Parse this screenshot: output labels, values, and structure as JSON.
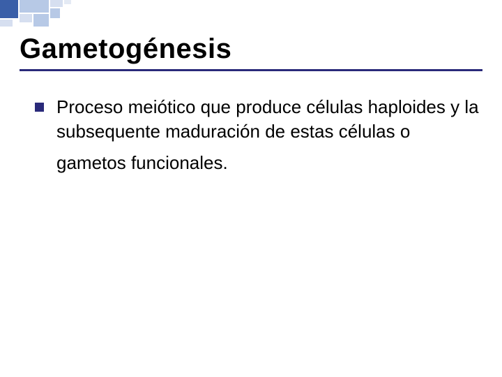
{
  "type": "slide",
  "background_color": "#ffffff",
  "accent_color": "#2a2a7a",
  "decoration_colors": {
    "dark": "#3a5fa8",
    "mid": "#b7c9e6",
    "light": "#d6dff0",
    "faint": "#e4eaf4"
  },
  "title": {
    "text": "Gametogénesis",
    "fontsize": 40,
    "font_weight": "bold",
    "color": "#000000",
    "underline_color": "#2a2a7a",
    "underline_thickness": 3
  },
  "body": {
    "bullet": {
      "shape": "square",
      "size": 13,
      "color": "#2a2a7a"
    },
    "fontsize": 26,
    "color": "#000000",
    "items": [
      {
        "line1": "Proceso meiótico que produce células haploides y la subsequente maduración de estas células o",
        "line2": "gametos funcionales."
      }
    ]
  },
  "font_family": "Comic Sans MS"
}
